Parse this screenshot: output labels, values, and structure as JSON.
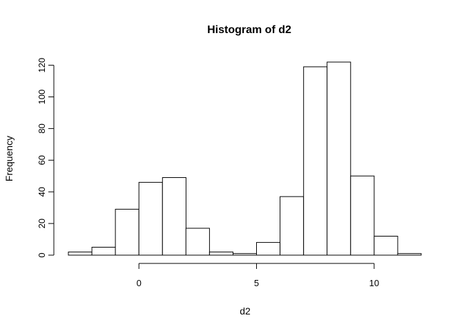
{
  "chart_data": {
    "type": "bar",
    "title": "Histogram of d2",
    "xlabel": "d2",
    "ylabel": "Frequency",
    "bins": [
      {
        "x0": -3,
        "x1": -2,
        "count": 2
      },
      {
        "x0": -2,
        "x1": -1,
        "count": 5
      },
      {
        "x0": -1,
        "x1": 0,
        "count": 29
      },
      {
        "x0": 0,
        "x1": 1,
        "count": 46
      },
      {
        "x0": 1,
        "x1": 2,
        "count": 49
      },
      {
        "x0": 2,
        "x1": 3,
        "count": 17
      },
      {
        "x0": 3,
        "x1": 4,
        "count": 2
      },
      {
        "x0": 4,
        "x1": 5,
        "count": 1
      },
      {
        "x0": 5,
        "x1": 6,
        "count": 8
      },
      {
        "x0": 6,
        "x1": 7,
        "count": 37
      },
      {
        "x0": 7,
        "x1": 8,
        "count": 119
      },
      {
        "x0": 8,
        "x1": 9,
        "count": 122
      },
      {
        "x0": 9,
        "x1": 10,
        "count": 50
      },
      {
        "x0": 10,
        "x1": 11,
        "count": 12
      },
      {
        "x0": 11,
        "x1": 12,
        "count": 1
      }
    ],
    "xticks": [
      0,
      5,
      10
    ],
    "yticks": [
      0,
      20,
      40,
      60,
      80,
      100,
      120
    ],
    "xlim": [
      -3,
      12
    ],
    "ylim": [
      0,
      122
    ],
    "grid": false
  }
}
